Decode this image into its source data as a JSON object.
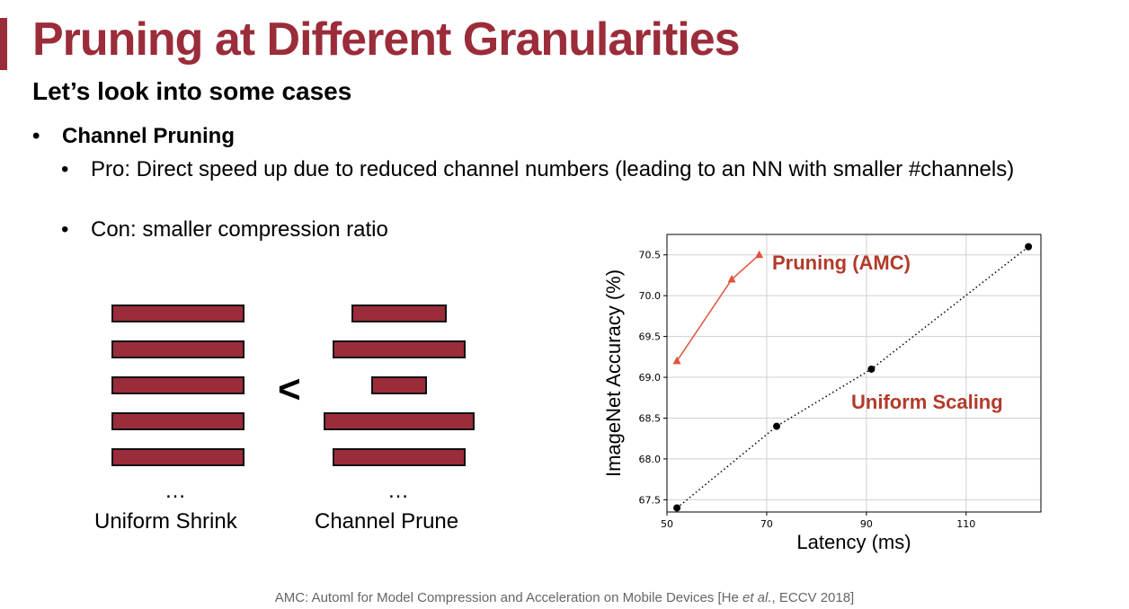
{
  "slide": {
    "title": "Pruning at Different Granularities",
    "subtitle": "Let’s look into some cases",
    "bullet": "Channel Pruning",
    "sub_bullets": [
      "Pro: Direct speed up due to reduced channel numbers (leading to an NN with smaller #channels)",
      "Con: smaller compression ratio"
    ],
    "bullet_glyph": "•",
    "footer": {
      "text_before": "AMC: Automl for Model Compression and Acceleration on Mobile Devices [He ",
      "italic": "et al.",
      "text_after": ", ECCV 2018]"
    }
  },
  "diagram": {
    "left_caption": "Uniform Shrink",
    "right_caption": "Channel Prune",
    "ellipsis": "…",
    "comparator": "<",
    "bar_color": "#9b2c3a",
    "uniform_widths": [
      1,
      1,
      1,
      1,
      1
    ],
    "prune_widths": [
      0.72,
      1.0,
      0.42,
      1.14,
      1.0
    ]
  },
  "chart_data": {
    "type": "line",
    "xlabel": "Latency (ms)",
    "ylabel": "ImageNet Accuracy (%)",
    "xlim": [
      50,
      125
    ],
    "ylim": [
      67.35,
      70.75
    ],
    "xticks": [
      50,
      70,
      90,
      110
    ],
    "yticks": [
      67.5,
      68.0,
      68.5,
      69.0,
      69.5,
      70.0,
      70.5
    ],
    "grid": true,
    "series": [
      {
        "name": "Pruning (AMC)",
        "color": "#e0523a",
        "label_color": "#b23a2a",
        "marker": "triangle",
        "line": "solid",
        "x": [
          52,
          63,
          68.5
        ],
        "y": [
          69.2,
          70.2,
          70.5
        ]
      },
      {
        "name": "Uniform Scaling",
        "color": "#000000",
        "label_color": "#b23a2a",
        "marker": "circle",
        "line": "dotted",
        "x": [
          52,
          72,
          91,
          122.5
        ],
        "y": [
          67.4,
          68.4,
          69.1,
          70.6
        ]
      }
    ]
  }
}
